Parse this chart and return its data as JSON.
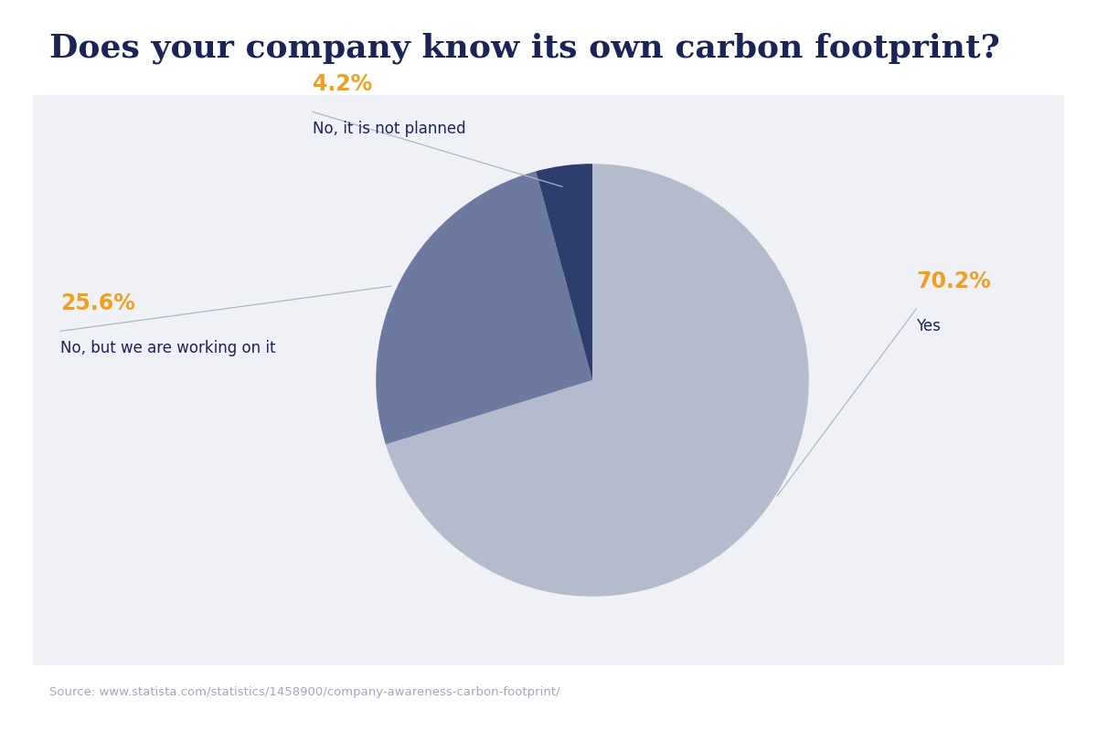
{
  "title": "Does your company know its own carbon footprint?",
  "title_color": "#1a2456",
  "title_fontsize": 26,
  "slices": [
    70.2,
    25.6,
    4.2
  ],
  "labels": [
    "Yes",
    "No, but we are working on it",
    "No, it is not planned"
  ],
  "percentages": [
    "70.2%",
    "25.6%",
    "4.2%"
  ],
  "colors": [
    "#b3bbcc",
    "#6b7a9e",
    "#2d3e6e"
  ],
  "pct_color": "#f0a020",
  "label_color": "#1a2456",
  "chart_bg": "#f0f1f6",
  "source_text": "Source: www.statista.com/statistics/1458900/company-awareness-carbon-footprint/",
  "source_color": "#a0a8c0",
  "startangle": 90,
  "fig_bg": "#ffffff",
  "line_color": "#b0b4c4"
}
